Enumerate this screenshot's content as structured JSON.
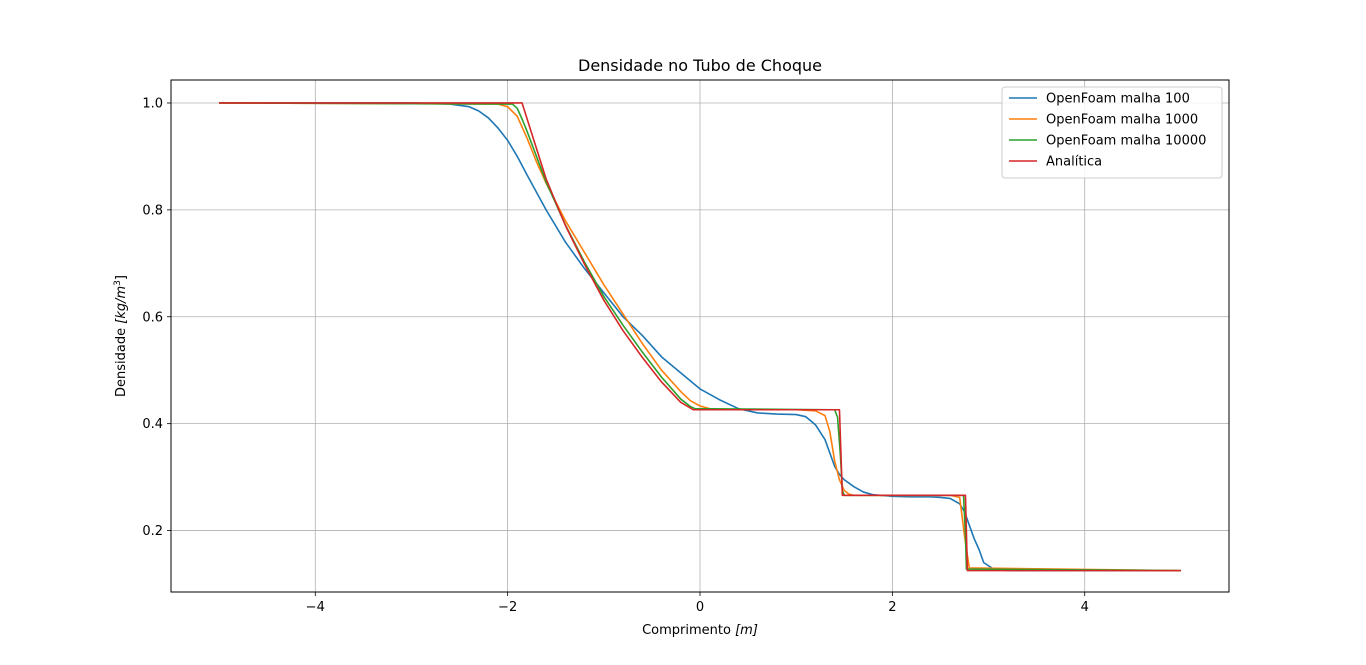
{
  "chart_data": {
    "type": "line",
    "title": "Densidade no Tubo de Choque",
    "xlabel": {
      "prefix": "Comprimento ",
      "unit": "[m]"
    },
    "ylabel": {
      "prefix": "Densidade ",
      "unit": "[kg/m",
      "sup": "3",
      "close": "]"
    },
    "xlim": [
      -5.5,
      5.5
    ],
    "ylim": [
      0.085,
      1.043
    ],
    "xticks": [
      -4,
      -2,
      0,
      2,
      4
    ],
    "xtick_labels": [
      "−4",
      "−2",
      "0",
      "2",
      "4"
    ],
    "yticks": [
      0.2,
      0.4,
      0.6,
      0.8,
      1.0
    ],
    "ytick_labels": [
      "0.2",
      "0.4",
      "0.6",
      "0.8",
      "1.0"
    ],
    "grid": true,
    "legend": "top-right",
    "series": [
      {
        "name": "OpenFoam malha 100",
        "color": "#1f77b4",
        "x": [
          -5.0,
          -3.0,
          -2.6,
          -2.4,
          -2.3,
          -2.2,
          -2.1,
          -2.0,
          -1.9,
          -1.8,
          -1.6,
          -1.4,
          -1.2,
          -1.0,
          -0.8,
          -0.6,
          -0.4,
          -0.2,
          0.0,
          0.2,
          0.4,
          0.6,
          0.8,
          1.0,
          1.1,
          1.2,
          1.3,
          1.35,
          1.4,
          1.45,
          1.5,
          1.6,
          1.7,
          1.8,
          2.0,
          2.2,
          2.4,
          2.5,
          2.6,
          2.7,
          2.75,
          2.8,
          2.85,
          2.9,
          2.95,
          3.05,
          3.2,
          5.0
        ],
        "y": [
          1.0,
          1.0,
          0.998,
          0.993,
          0.985,
          0.972,
          0.953,
          0.93,
          0.9,
          0.866,
          0.8,
          0.74,
          0.69,
          0.645,
          0.6,
          0.565,
          0.525,
          0.495,
          0.465,
          0.445,
          0.428,
          0.42,
          0.418,
          0.417,
          0.413,
          0.398,
          0.37,
          0.345,
          0.32,
          0.305,
          0.295,
          0.282,
          0.272,
          0.267,
          0.264,
          0.263,
          0.263,
          0.262,
          0.26,
          0.25,
          0.235,
          0.21,
          0.185,
          0.165,
          0.14,
          0.128,
          0.125,
          0.125
        ]
      },
      {
        "name": "OpenFoam malha 1000",
        "color": "#ff7f0e",
        "x": [
          -5.0,
          -2.1,
          -2.0,
          -1.9,
          -1.8,
          -1.7,
          -1.6,
          -1.4,
          -1.2,
          -1.0,
          -0.8,
          -0.6,
          -0.4,
          -0.2,
          -0.1,
          0.0,
          0.1,
          0.3,
          0.6,
          1.0,
          1.2,
          1.3,
          1.35,
          1.4,
          1.45,
          1.5,
          1.55,
          1.6,
          2.0,
          2.6,
          2.7,
          2.75,
          2.8,
          5.0
        ],
        "y": [
          1.0,
          0.998,
          0.993,
          0.975,
          0.935,
          0.89,
          0.85,
          0.78,
          0.72,
          0.66,
          0.605,
          0.55,
          0.5,
          0.46,
          0.443,
          0.433,
          0.428,
          0.426,
          0.426,
          0.426,
          0.424,
          0.415,
          0.385,
          0.33,
          0.295,
          0.275,
          0.268,
          0.266,
          0.266,
          0.266,
          0.262,
          0.19,
          0.13,
          0.125
        ]
      },
      {
        "name": "OpenFoam malha 10000",
        "color": "#2ca02c",
        "x": [
          -5.0,
          -1.95,
          -1.9,
          -1.85,
          -1.8,
          -1.6,
          -1.4,
          -1.2,
          -1.0,
          -0.8,
          -0.6,
          -0.4,
          -0.2,
          -0.1,
          -0.05,
          1.4,
          1.43,
          1.46,
          1.48,
          1.5,
          2.74,
          2.76,
          2.77,
          5.0
        ],
        "y": [
          1.0,
          0.998,
          0.99,
          0.97,
          0.948,
          0.852,
          0.772,
          0.702,
          0.638,
          0.584,
          0.534,
          0.487,
          0.446,
          0.432,
          0.428,
          0.426,
          0.412,
          0.34,
          0.275,
          0.266,
          0.266,
          0.19,
          0.128,
          0.125
        ]
      },
      {
        "name": "Analítica",
        "color": "#d62728",
        "x": [
          -5.0,
          -1.85,
          -1.6,
          -1.4,
          -1.2,
          -1.0,
          -0.8,
          -0.6,
          -0.4,
          -0.2,
          -0.07,
          1.45,
          1.48,
          2.76,
          2.78,
          5.0
        ],
        "y": [
          1.0,
          1.0,
          0.858,
          0.771,
          0.698,
          0.631,
          0.574,
          0.524,
          0.478,
          0.44,
          0.426,
          0.426,
          0.266,
          0.266,
          0.125,
          0.125
        ]
      }
    ]
  }
}
